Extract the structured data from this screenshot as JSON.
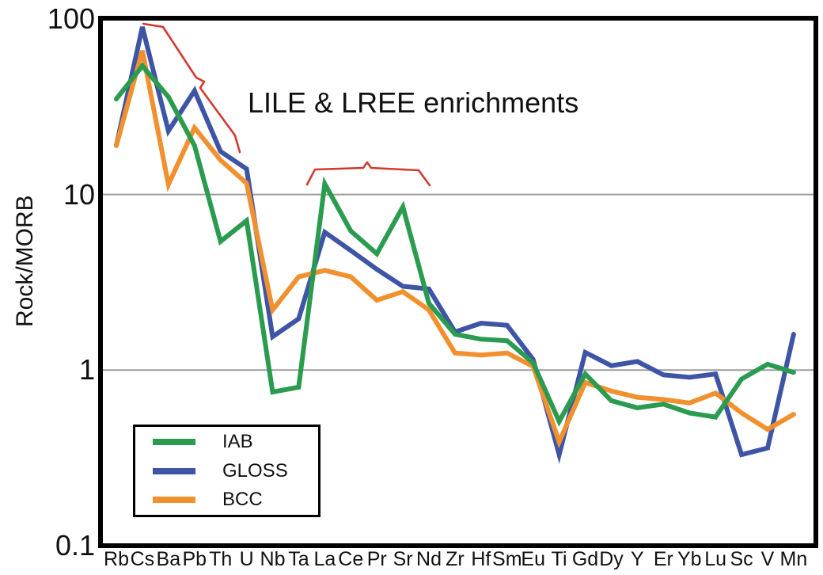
{
  "chart_data": {
    "type": "line",
    "title": "",
    "xlabel": "",
    "ylabel": "Rock/MORB",
    "x_scale": "categorical",
    "y_scale": "log",
    "ylim": [
      0.1,
      100
    ],
    "y_ticks": [
      {
        "value": 100,
        "label": "100"
      },
      {
        "value": 10,
        "label": "10"
      },
      {
        "value": 1,
        "label": "1"
      },
      {
        "value": 0.1,
        "label": "0.1"
      }
    ],
    "gridlines_y": [
      10,
      1
    ],
    "grid": "horizontal-only",
    "annotation_text": "LILE & LREE enrichments",
    "categories": [
      "Rb",
      "Cs",
      "Ba",
      "Pb",
      "Th",
      "U",
      "Nb",
      "Ta",
      "La",
      "Ce",
      "Pr",
      "Sr",
      "Nd",
      "Zr",
      "Hf",
      "Sm",
      "Eu",
      "Ti",
      "Gd",
      "Dy",
      "Y",
      "Er",
      "Yb",
      "Lu",
      "Sc",
      "V",
      "Mn"
    ],
    "series": [
      {
        "name": "IAB",
        "color": "#2B9B4F",
        "values": [
          35,
          54,
          36,
          19,
          5.4,
          7.1,
          0.75,
          0.8,
          11.5,
          6.2,
          4.6,
          8.5,
          2.4,
          1.6,
          1.5,
          1.47,
          1.1,
          0.51,
          0.95,
          0.67,
          0.61,
          0.64,
          0.57,
          0.54,
          0.89,
          1.08,
          0.97
        ]
      },
      {
        "name": "GLOSS",
        "color": "#3E55A6",
        "values": [
          19,
          90,
          23,
          39,
          17.6,
          14,
          1.55,
          1.96,
          6.1,
          4.8,
          3.75,
          3.0,
          2.9,
          1.65,
          1.85,
          1.8,
          1.15,
          0.33,
          1.26,
          1.06,
          1.12,
          0.94,
          0.91,
          0.95,
          0.33,
          0.36,
          1.6
        ]
      },
      {
        "name": "BCC",
        "color": "#F1902E",
        "values": [
          19,
          66,
          11.4,
          24,
          15.7,
          11.6,
          2.2,
          3.4,
          3.7,
          3.4,
          2.5,
          2.8,
          2.2,
          1.25,
          1.22,
          1.25,
          1.05,
          0.39,
          0.85,
          0.76,
          0.7,
          0.68,
          0.65,
          0.74,
          0.57,
          0.46,
          0.56
        ]
      }
    ],
    "legend": {
      "position": "lower-left"
    },
    "annotations": [
      {
        "name": "brace-lile-peaks",
        "shape": "curly-brace",
        "orientation": "diagonal",
        "spans": "Cs-Ba-Pb-Th peaks",
        "color": "#D23A2E"
      },
      {
        "name": "brace-lree",
        "shape": "curly-brace",
        "orientation": "horizontal",
        "spans": "La-Nd",
        "color": "#D23A2E"
      }
    ]
  }
}
